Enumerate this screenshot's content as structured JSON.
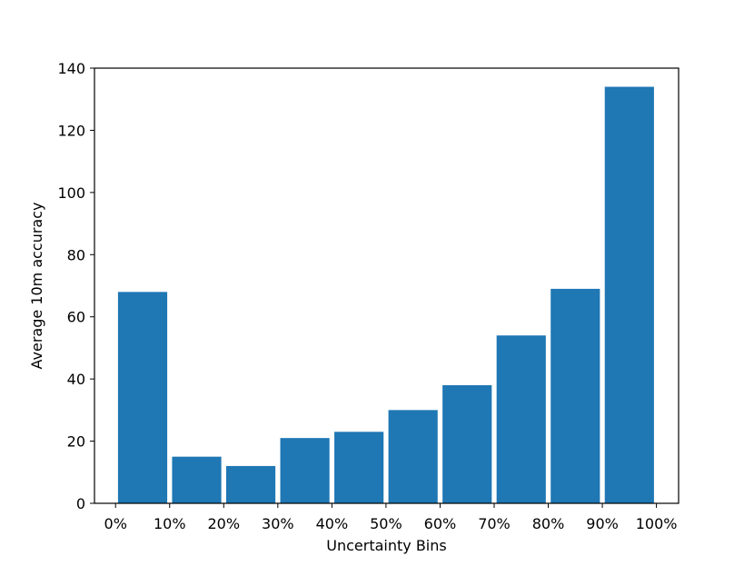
{
  "chart_data": {
    "type": "bar",
    "xlabel": "Uncertainty Bins",
    "ylabel": "Average 10m accuracy",
    "x_tick_labels": [
      "0%",
      "10%",
      "20%",
      "30%",
      "40%",
      "50%",
      "60%",
      "70%",
      "80%",
      "90%",
      "100%"
    ],
    "bins": [
      [
        0,
        10
      ],
      [
        10,
        20
      ],
      [
        20,
        30
      ],
      [
        30,
        40
      ],
      [
        40,
        50
      ],
      [
        50,
        60
      ],
      [
        60,
        70
      ],
      [
        70,
        80
      ],
      [
        80,
        90
      ],
      [
        90,
        100
      ]
    ],
    "values": [
      68,
      15,
      12,
      21,
      23,
      30,
      38,
      54,
      69,
      134
    ],
    "ylim": [
      0,
      140
    ],
    "y_ticks": [
      0,
      20,
      40,
      60,
      80,
      100,
      120,
      140
    ],
    "grid": false,
    "colors": {
      "bar": "#1f77b4",
      "axis": "#000000"
    }
  }
}
